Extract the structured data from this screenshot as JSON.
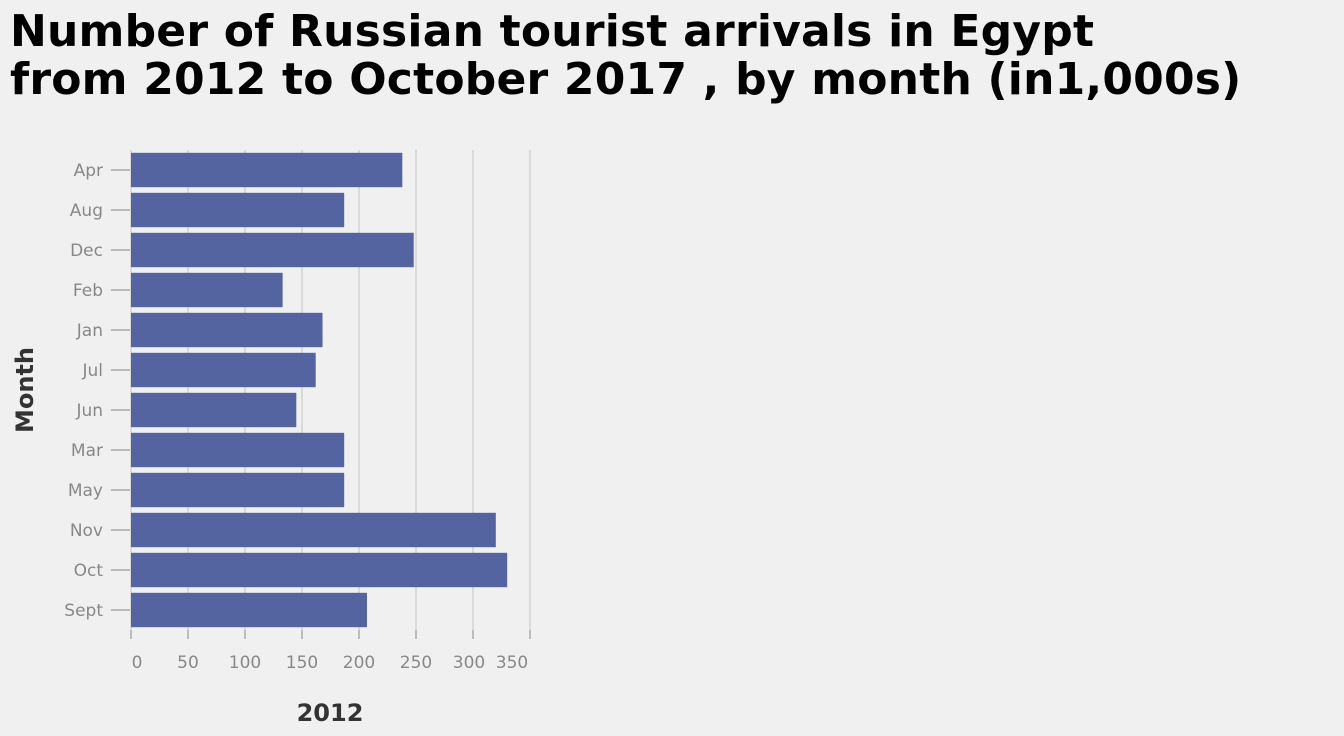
{
  "title_lines": [
    "Number of Russian tourist arrivals in Egypt",
    "from 2012 to October 2017 , by month (in1,000s)"
  ],
  "chart_data": {
    "type": "bar",
    "orientation": "horizontal",
    "title": "Number of Russian tourist arrivals in Egypt from 2012 to October 2017 , by month (in1,000s)",
    "xlabel": "2012",
    "ylabel": "Month",
    "categories": [
      "Apr",
      "Aug",
      "Dec",
      "Feb",
      "Jan",
      "Jul",
      "Jun",
      "Mar",
      "May",
      "Nov",
      "Oct",
      "Sept"
    ],
    "values": [
      238,
      187,
      248,
      133,
      168,
      162,
      145,
      187,
      187,
      320,
      330,
      207
    ],
    "xlim": [
      0,
      350
    ],
    "xticks": [
      0,
      50,
      100,
      150,
      200,
      250,
      300,
      350
    ],
    "grid": "vertical",
    "bar_color": "#5364a0"
  }
}
